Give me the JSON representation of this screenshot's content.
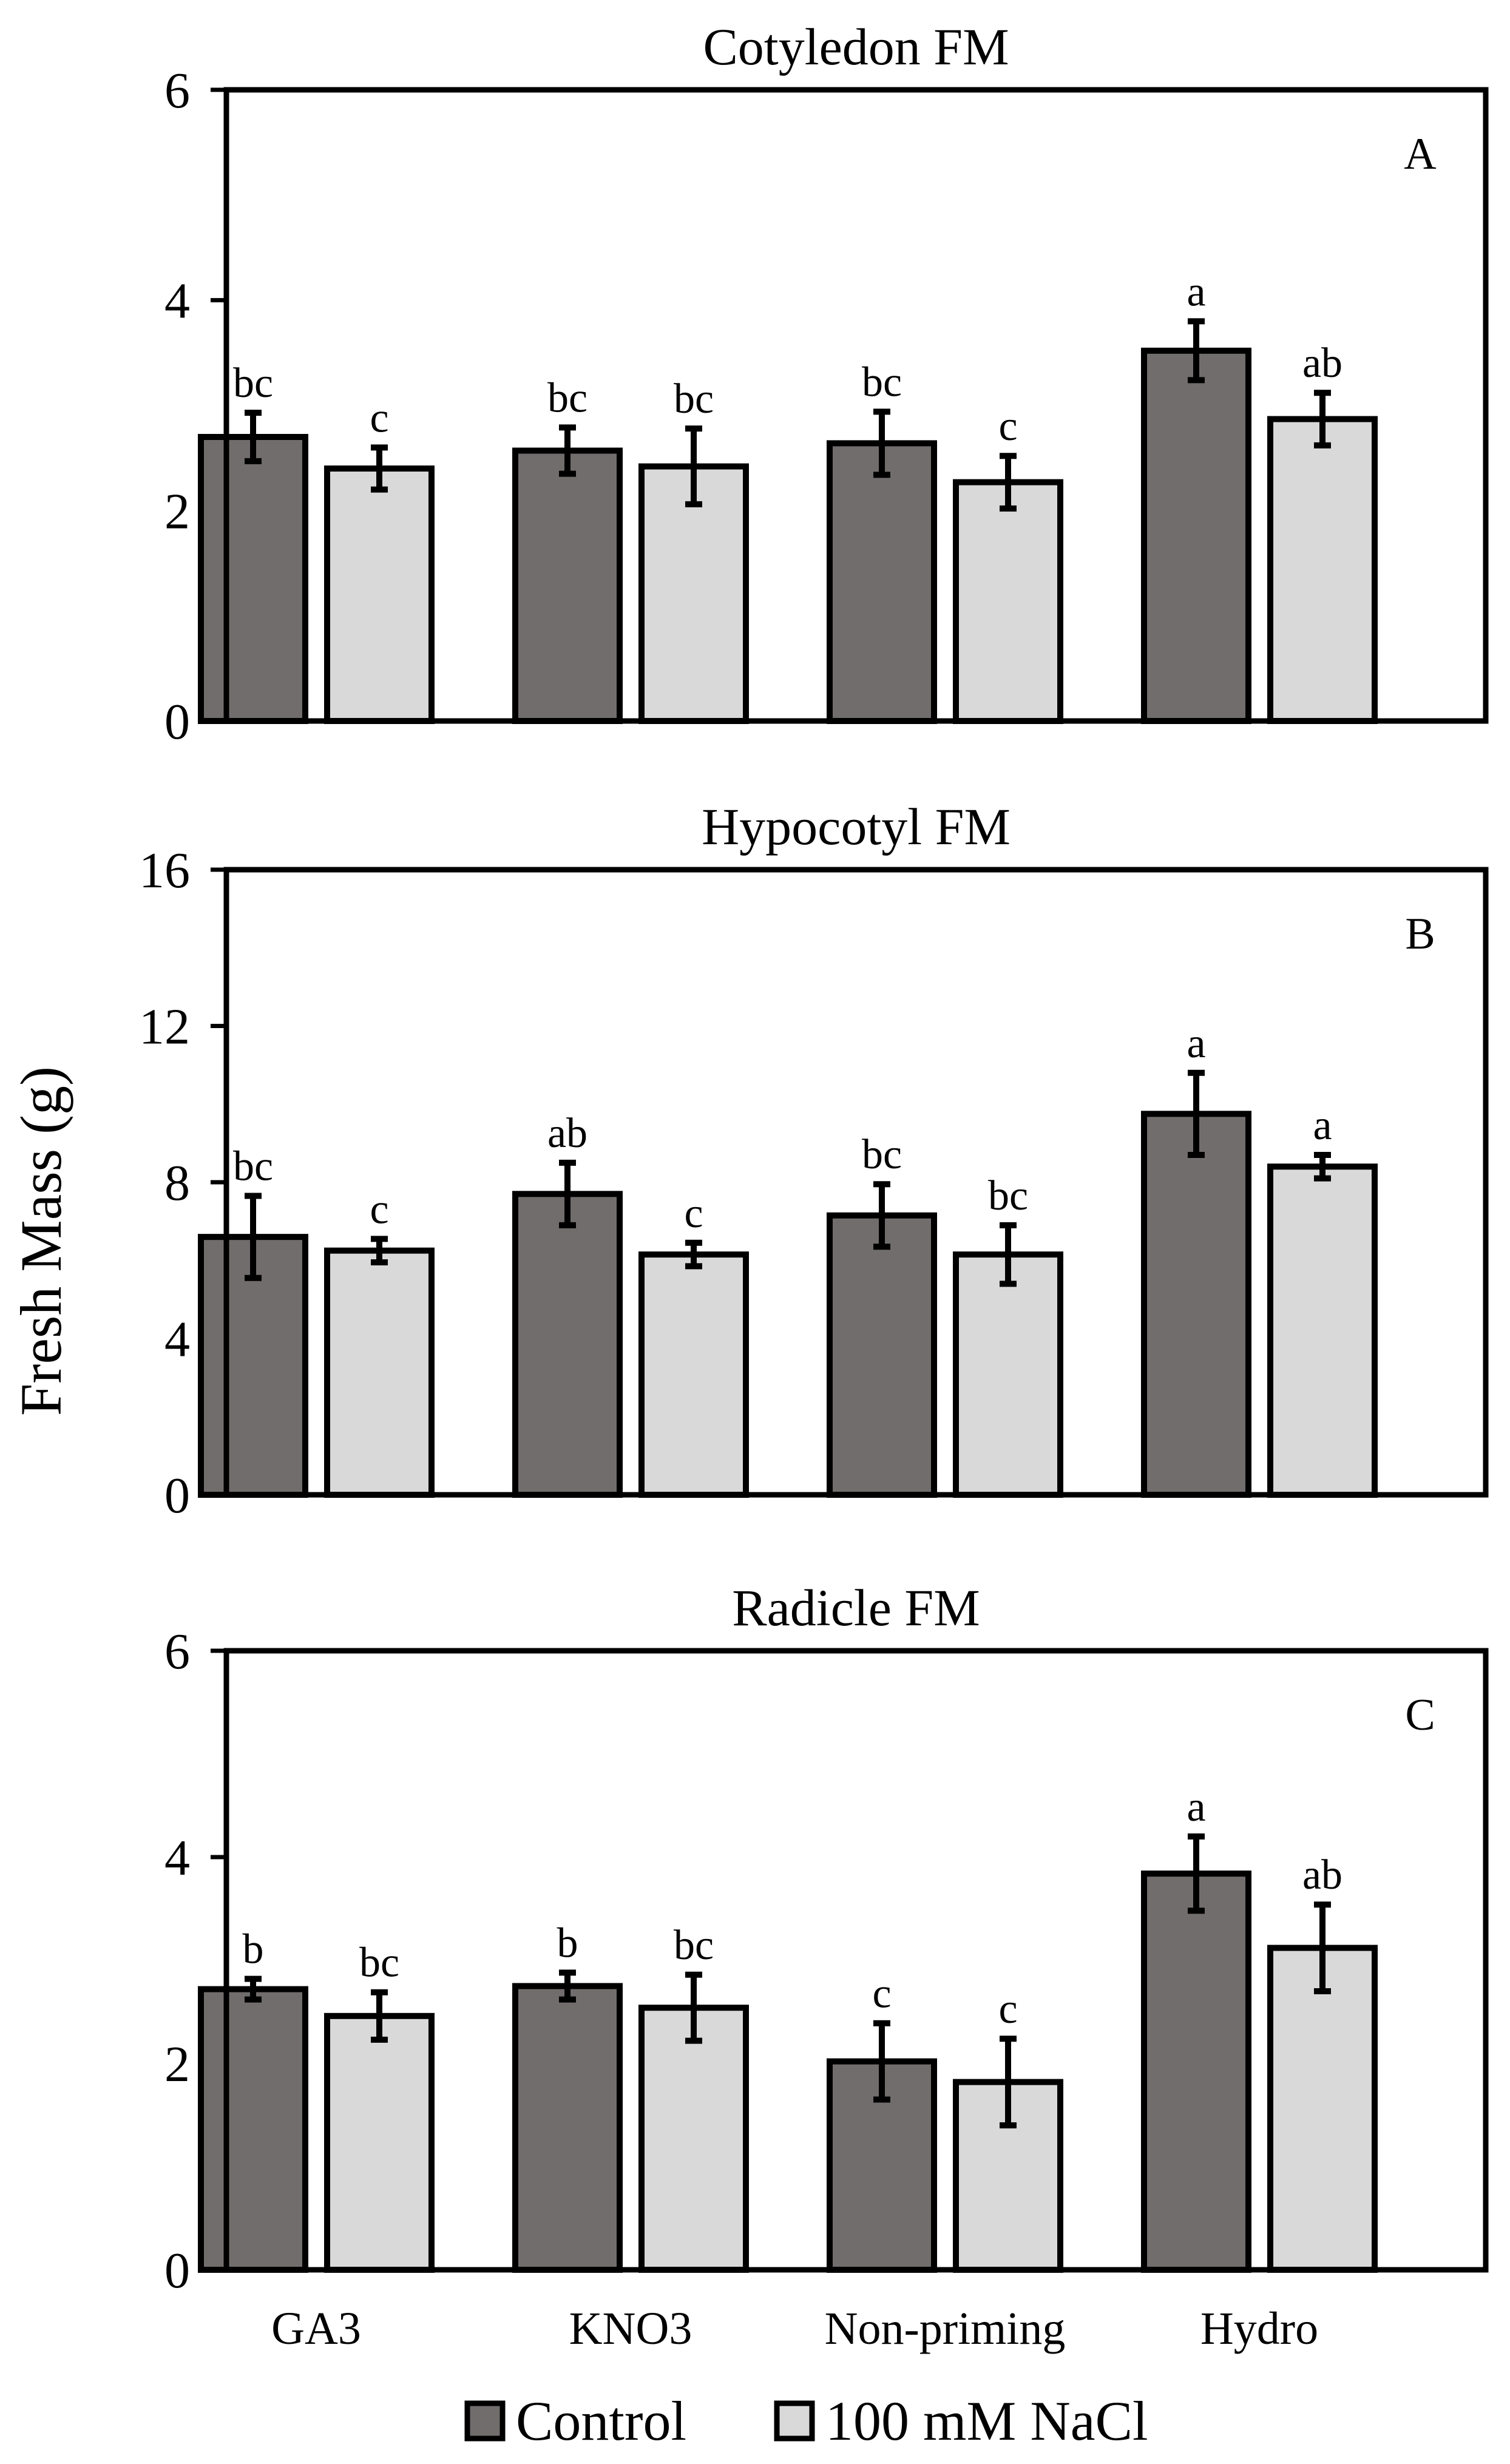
{
  "figure": {
    "ylabel": "Fresh Mass (g)",
    "categories": [
      "GA3",
      "KNO3",
      "Non-priming",
      "Hydro"
    ],
    "legend": [
      {
        "name": "Control",
        "color": "#726d6d"
      },
      {
        "name": "100 mM NaCl",
        "color": "#d9d9d9"
      }
    ]
  },
  "chart_data": [
    {
      "type": "bar",
      "title": "Cotyledon   FM",
      "panel_letter": "A",
      "categories": [
        "GA3",
        "KNO3",
        "Non-priming",
        "Hydro"
      ],
      "ylim": [
        0,
        6
      ],
      "yticks": [
        0,
        2,
        4,
        6
      ],
      "ylabel": "Fresh Mass (g)",
      "series": [
        {
          "name": "Control",
          "color": "#726d6d",
          "values": [
            2.7,
            2.57,
            2.64,
            3.52
          ],
          "errors": [
            0.23,
            0.22,
            0.3,
            0.28
          ],
          "labels": [
            "bc",
            "bc",
            "bc",
            "a"
          ]
        },
        {
          "name": "100 mM NaCl",
          "color": "#d9d9d9",
          "values": [
            2.4,
            2.42,
            2.27,
            2.87
          ],
          "errors": [
            0.2,
            0.36,
            0.25,
            0.25
          ],
          "labels": [
            "c",
            "bc",
            "c",
            "ab"
          ]
        }
      ]
    },
    {
      "type": "bar",
      "title": "Hypocotyl  FM",
      "panel_letter": "B",
      "categories": [
        "GA3",
        "KNO3",
        "Non-priming",
        "Hydro"
      ],
      "ylim": [
        0,
        16
      ],
      "yticks": [
        0,
        4,
        8,
        12,
        16
      ],
      "ylabel": "Fresh Mass (g)",
      "series": [
        {
          "name": "Control",
          "color": "#726d6d",
          "values": [
            6.6,
            7.7,
            7.15,
            9.75
          ],
          "errors": [
            1.05,
            0.8,
            0.8,
            1.05
          ],
          "labels": [
            "bc",
            "ab",
            "bc",
            "a"
          ]
        },
        {
          "name": "100 mM NaCl",
          "color": "#d9d9d9",
          "values": [
            6.25,
            6.15,
            6.15,
            8.4
          ],
          "errors": [
            0.3,
            0.3,
            0.75,
            0.3
          ],
          "labels": [
            "c",
            "c",
            "bc",
            "a"
          ]
        }
      ]
    },
    {
      "type": "bar",
      "title": "Radicle   FM",
      "panel_letter": "C",
      "categories": [
        "GA3",
        "KNO3",
        "Non-priming",
        "Hydro"
      ],
      "ylim": [
        0,
        6
      ],
      "yticks": [
        0,
        2,
        4,
        6
      ],
      "ylabel": "Fresh Mass (g)",
      "series": [
        {
          "name": "Control",
          "color": "#726d6d",
          "values": [
            2.72,
            2.75,
            2.02,
            3.84
          ],
          "errors": [
            0.1,
            0.13,
            0.37,
            0.36
          ],
          "labels": [
            "b",
            "b",
            "c",
            "a"
          ]
        },
        {
          "name": "100 mM NaCl",
          "color": "#d9d9d9",
          "values": [
            2.46,
            2.54,
            1.82,
            3.12
          ],
          "errors": [
            0.23,
            0.32,
            0.42,
            0.42
          ],
          "labels": [
            "bc",
            "bc",
            "c",
            "ab"
          ]
        }
      ]
    }
  ]
}
